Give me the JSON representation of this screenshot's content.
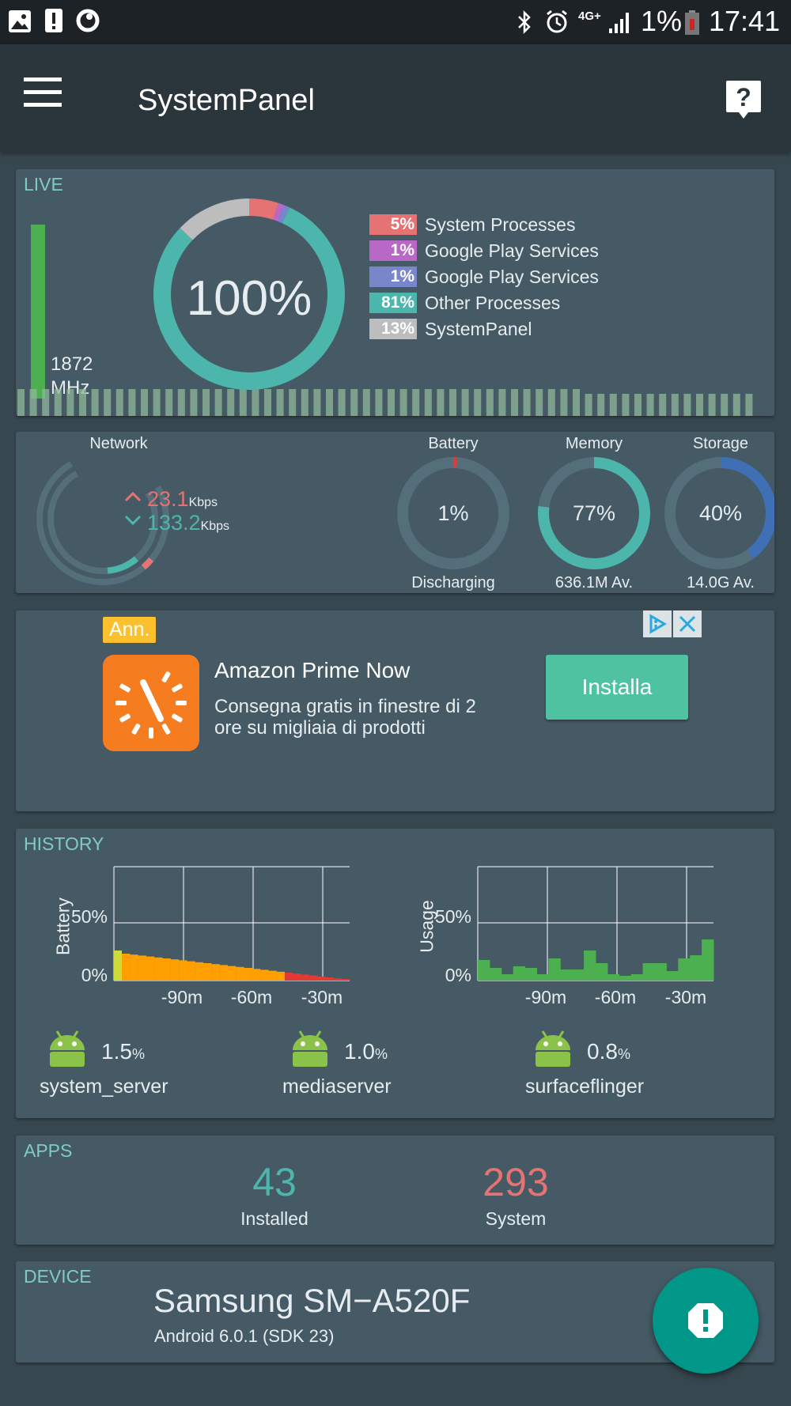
{
  "status_bar": {
    "battery_percent": "1%",
    "time": "17:41",
    "network": "4G+",
    "left_icons": [
      "gallery-icon",
      "alert-icon",
      "vodafone-icon"
    ],
    "right_icons": [
      "bluetooth-icon",
      "alarm-icon",
      "network-4g-icon",
      "signal-icon",
      "battery-icon"
    ]
  },
  "app_bar": {
    "title": "SystemPanel",
    "menu_icon": "hamburger-menu-icon",
    "help_icon": "help-icon"
  },
  "live": {
    "section_title": "LIVE",
    "cpu_freq_value": "1872",
    "cpu_freq_unit": "MHz",
    "total_percent": "100%",
    "legend": [
      {
        "percent": "5%",
        "label": "System Processes",
        "color": "#e57373"
      },
      {
        "percent": "1%",
        "label": "Google Play Services",
        "color": "#ba68c8"
      },
      {
        "percent": "1%",
        "label": "Google Play Services",
        "color": "#7986cb"
      },
      {
        "percent": "81%",
        "label": "Other Processes",
        "color": "#4db6ac"
      },
      {
        "percent": "13%",
        "label": "SystemPanel",
        "color": "#bdbdbd"
      }
    ]
  },
  "stats": {
    "network": {
      "label": "Network",
      "up_value": "23.1",
      "down_value": "133.2",
      "unit": "Kbps"
    },
    "battery": {
      "label": "Battery",
      "value": "1%",
      "sub": "Discharging",
      "fraction": 0.01
    },
    "memory": {
      "label": "Memory",
      "value": "77%",
      "sub": "636.1M Av.",
      "fraction": 0.77
    },
    "storage": {
      "label": "Storage",
      "value": "40%",
      "sub": "14.0G Av.",
      "fraction": 0.4
    }
  },
  "ad": {
    "badge": "Ann.",
    "title": "Amazon Prime Now",
    "description_line1": "Consegna gratis in finestre di 2",
    "description_line2": "ore su migliaia di prodotti",
    "button_label": "Installa",
    "icon": "amazon-prime-now-clock-icon",
    "adchoices_icon": "adchoices-icon",
    "close_icon": "close-icon"
  },
  "history": {
    "section_title": "HISTORY",
    "battery_chart": {
      "ylabel": "Battery",
      "y_ticks": [
        "50%",
        "0%"
      ],
      "x_ticks": [
        "-90m",
        "-60m",
        "-30m"
      ]
    },
    "usage_chart": {
      "ylabel": "Usage",
      "y_ticks": [
        "50%",
        "0%"
      ],
      "x_ticks": [
        "-90m",
        "-60m",
        "-30m"
      ]
    },
    "processes": [
      {
        "value": "1.5",
        "unit": "%",
        "name": "system_server"
      },
      {
        "value": "1.0",
        "unit": "%",
        "name": "mediaserver"
      },
      {
        "value": "0.8",
        "unit": "%",
        "name": "surfaceflinger"
      }
    ]
  },
  "apps": {
    "section_title": "APPS",
    "installed_count": "43",
    "installed_label": "Installed",
    "system_count": "293",
    "system_label": "System"
  },
  "device": {
    "section_title": "DEVICE",
    "model": "Samsung SM−A520F",
    "android": "Android 6.0.1 (SDK 23)",
    "fab_icon": "alert-icon"
  },
  "colors": {
    "accent": "#4db6ac",
    "red": "#e57373",
    "fab": "#009688",
    "card": "#455a64",
    "background": "#37474f",
    "cpu_bar": "#4caf50",
    "storage": "#3f6fb5"
  }
}
